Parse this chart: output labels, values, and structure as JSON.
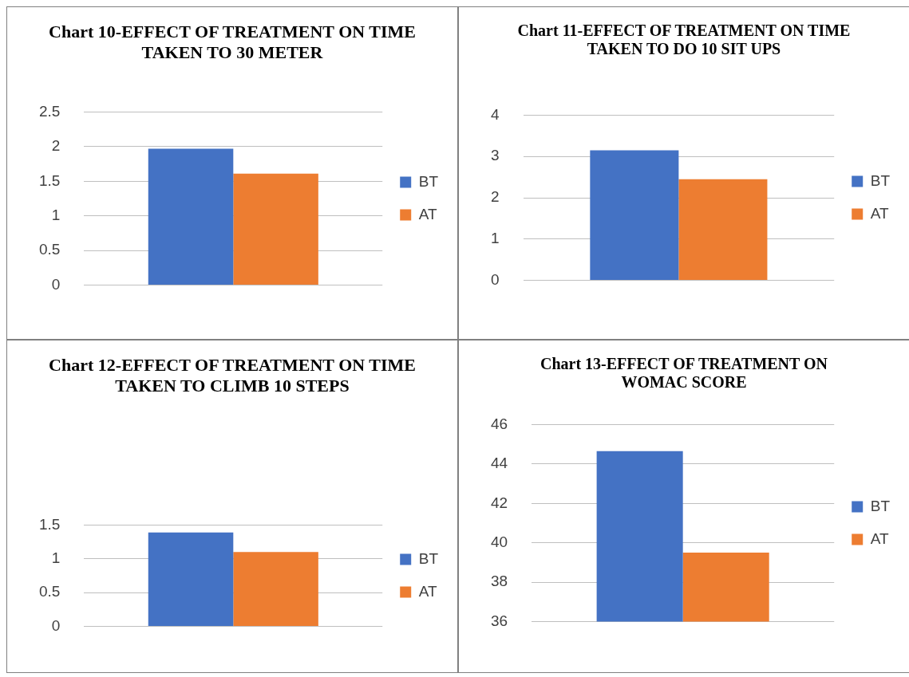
{
  "chart_data": [
    {
      "type": "bar",
      "title": "Chart 10-EFFECT OF TREATMENT ON TIME TAKEN TO 30 METER",
      "categories": [
        null
      ],
      "series": [
        {
          "name": "BT",
          "color": "#4472c4",
          "values": [
            1.97
          ]
        },
        {
          "name": "AT",
          "color": "#ed7d31",
          "values": [
            1.61
          ]
        }
      ],
      "ylim": [
        0,
        2.5
      ],
      "yticks": [
        0,
        0.5,
        1,
        1.5,
        2,
        2.5
      ],
      "grid": "y",
      "legend": "right"
    },
    {
      "type": "bar",
      "title": "Chart 11-EFFECT OF TREATMENT ON TIME TAKEN TO DO 10 SIT UPS",
      "categories": [
        null
      ],
      "series": [
        {
          "name": "BT",
          "color": "#4472c4",
          "values": [
            3.15
          ]
        },
        {
          "name": "AT",
          "color": "#ed7d31",
          "values": [
            2.45
          ]
        }
      ],
      "ylim": [
        0,
        4
      ],
      "yticks": [
        0,
        1,
        2,
        3,
        4
      ],
      "grid": "y",
      "legend": "right"
    },
    {
      "type": "bar",
      "title": "Chart 12-EFFECT OF TREATMENT ON TIME TAKEN TO CLIMB 10 STEPS",
      "categories": [
        null
      ],
      "series": [
        {
          "name": "BT",
          "color": "#4472c4",
          "values": [
            1.39
          ]
        },
        {
          "name": "AT",
          "color": "#ed7d31",
          "values": [
            1.1
          ]
        }
      ],
      "ylim": [
        0,
        1.5
      ],
      "yticks": [
        0,
        0.5,
        1,
        1.5
      ],
      "grid": "y",
      "legend": "right"
    },
    {
      "type": "bar",
      "title": "Chart 13-EFFECT OF TREATMENT ON WOMAC SCORE",
      "categories": [
        null
      ],
      "series": [
        {
          "name": "BT",
          "color": "#4472c4",
          "values": [
            44.65
          ]
        },
        {
          "name": "AT",
          "color": "#ed7d31",
          "values": [
            39.5
          ]
        }
      ],
      "ylim": [
        36,
        46
      ],
      "yticks": [
        36,
        38,
        40,
        42,
        44,
        46
      ],
      "grid": "y",
      "legend": "right"
    }
  ]
}
